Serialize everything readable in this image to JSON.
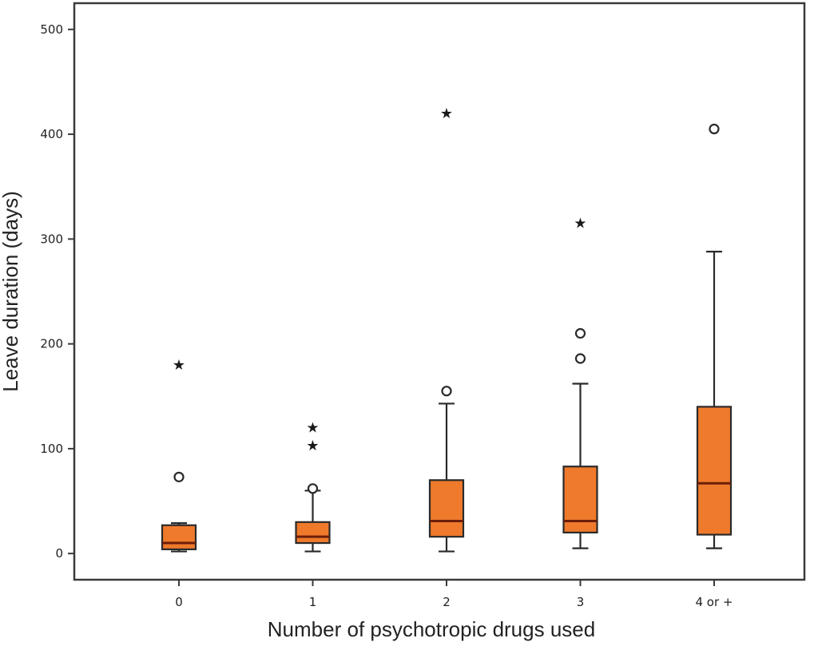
{
  "chart_data": {
    "type": "boxplot",
    "xlabel": "Number of psychotropic drugs used",
    "ylabel": "Leave duration (days)",
    "ylim": [
      -25,
      525
    ],
    "yticks": [
      0,
      100,
      200,
      300,
      400,
      500
    ],
    "categories": [
      "0",
      "1",
      "2",
      "3",
      "4 or +"
    ],
    "boxes": [
      {
        "category": "0",
        "whisker_low": 2,
        "q1": 4,
        "median": 10,
        "q3": 27,
        "whisker_high": 29,
        "outliers": [
          73
        ],
        "extremes": [
          180
        ]
      },
      {
        "category": "1",
        "whisker_low": 2,
        "q1": 10,
        "median": 16,
        "q3": 30,
        "whisker_high": 60,
        "outliers": [
          62
        ],
        "extremes": [
          103,
          120
        ]
      },
      {
        "category": "2",
        "whisker_low": 2,
        "q1": 16,
        "median": 31,
        "q3": 70,
        "whisker_high": 143,
        "outliers": [
          155
        ],
        "extremes": [
          420
        ]
      },
      {
        "category": "3",
        "whisker_low": 5,
        "q1": 20,
        "median": 31,
        "q3": 83,
        "whisker_high": 162,
        "outliers": [
          186,
          210
        ],
        "extremes": [
          315
        ]
      },
      {
        "category": "4 or +",
        "whisker_low": 5,
        "q1": 18,
        "median": 67,
        "q3": 140,
        "whisker_high": 288,
        "outliers": [
          405
        ],
        "extremes": []
      }
    ],
    "box_color": "#ef7a2c",
    "median_color": "#6b1e08",
    "grid": false
  }
}
